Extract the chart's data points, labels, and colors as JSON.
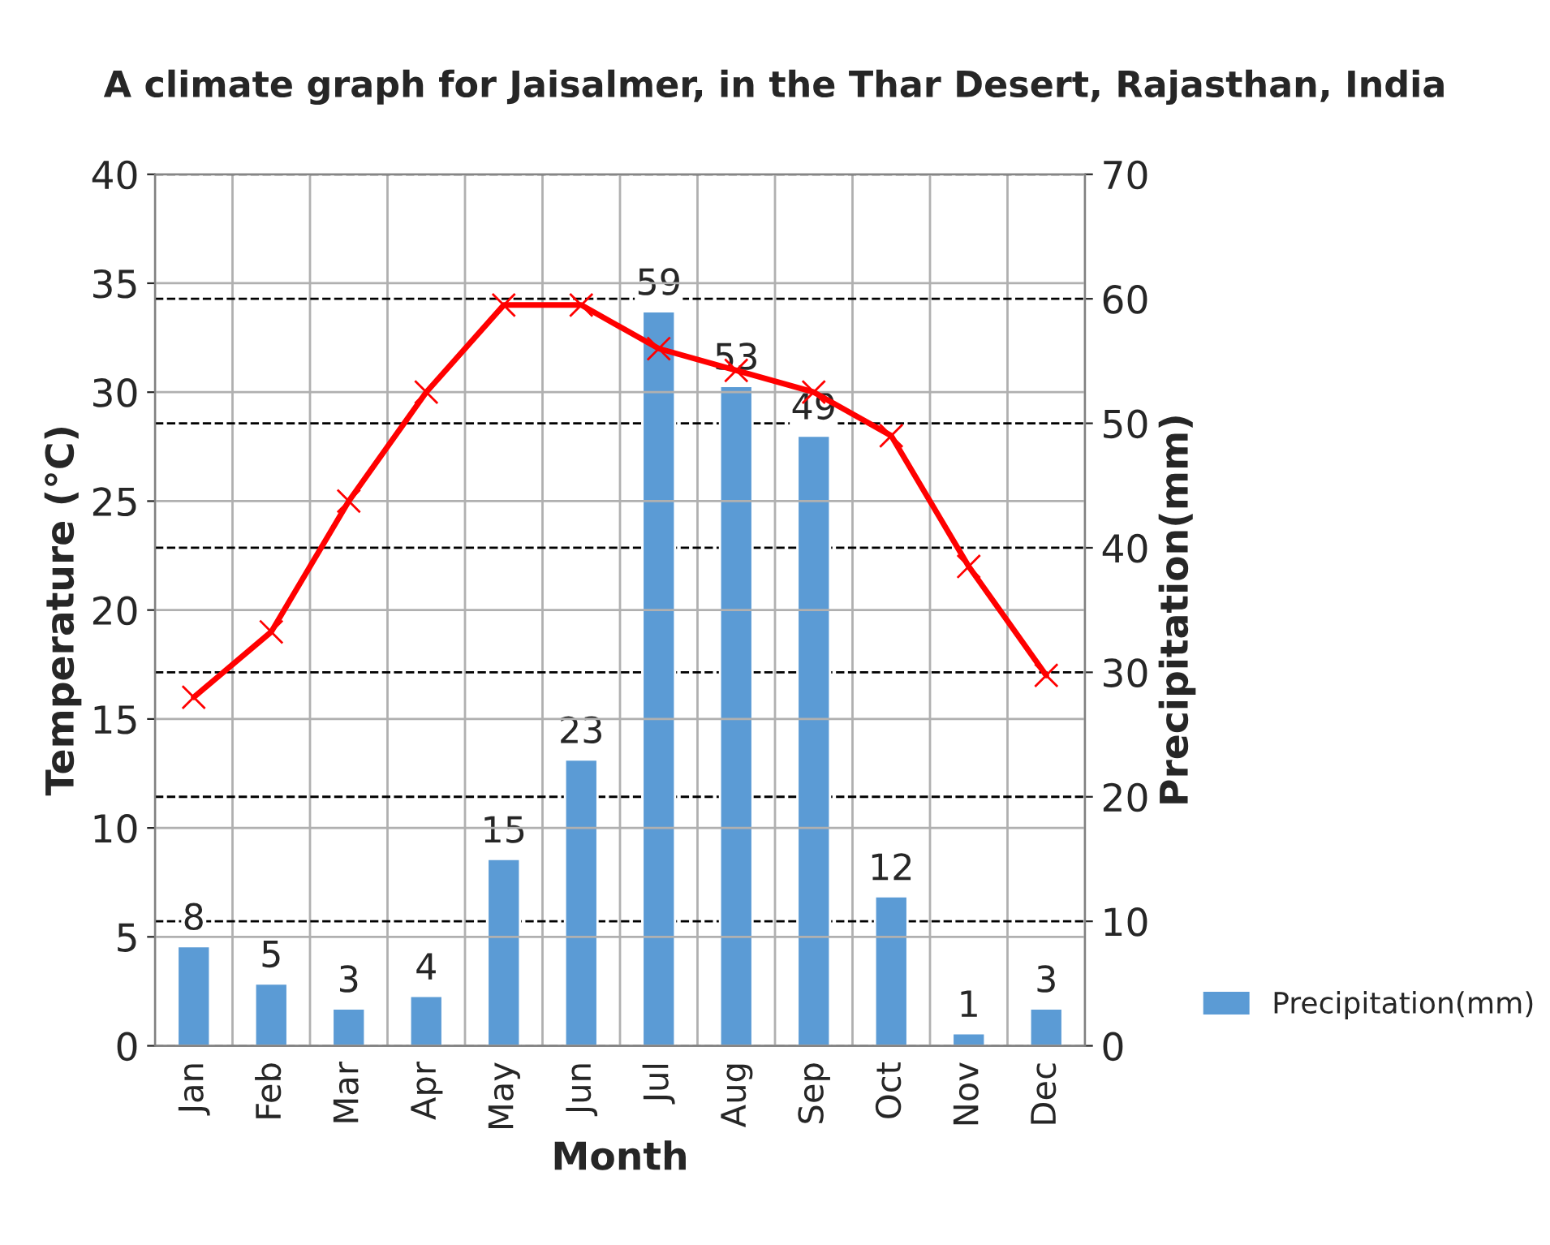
{
  "chart_data": {
    "type": "bar",
    "title": "A climate graph for Jaisalmer, in the Thar Desert, Rajasthan, India",
    "xlabel": "Month",
    "ylabel": "Temperature (°C)",
    "y2label": "Precipitation(mm)",
    "categories": [
      "Jan",
      "Feb",
      "Mar",
      "Apr",
      "May",
      "Jun",
      "Jul",
      "Aug",
      "Sep",
      "Oct",
      "Nov",
      "Dec"
    ],
    "series": [
      {
        "name": "Precipitation(mm)",
        "axis": "y2",
        "color": "#5b9bd5",
        "values": [
          8,
          5,
          3,
          4,
          15,
          23,
          59,
          53,
          49,
          12,
          1,
          3
        ],
        "value_labels": [
          "8",
          "5",
          "3",
          "4",
          "15",
          "23",
          "59",
          "53",
          "49",
          "12",
          "1",
          "3"
        ]
      },
      {
        "type": "line",
        "axis": "y",
        "color": "#ff0000",
        "marker": "cross",
        "values": [
          16,
          19,
          25,
          30,
          34,
          34,
          32,
          31,
          30,
          28,
          22,
          17
        ]
      }
    ],
    "ylim": [
      0,
      40
    ],
    "yticks": [
      0,
      5,
      10,
      15,
      20,
      25,
      30,
      35,
      40
    ],
    "y2lim": [
      0,
      70
    ],
    "y2ticks": [
      0,
      10,
      20,
      30,
      40,
      50,
      60,
      70
    ],
    "grid": true,
    "legend": "bottom right"
  }
}
